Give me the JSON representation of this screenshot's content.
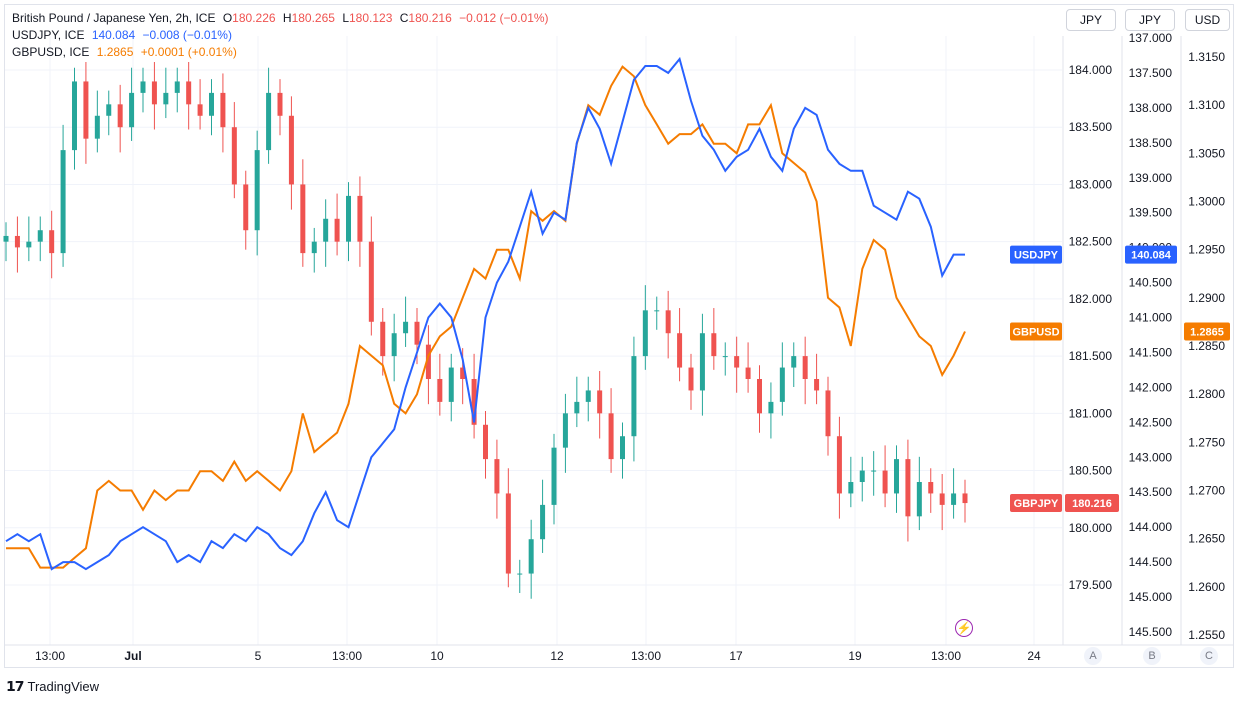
{
  "legend": {
    "main": {
      "name": "British Pound / Japanese Yen, 2h, ICE",
      "o_label": "O",
      "o": "180.226",
      "h_label": "H",
      "h": "180.265",
      "l_label": "L",
      "l": "180.123",
      "c_label": "C",
      "c": "180.216",
      "change": "−0.012 (−0.01%)"
    },
    "usdjpy": {
      "name": "USDJPY, ICE",
      "value": "140.084",
      "change": "−0.008 (−0.01%)"
    },
    "gbpusd": {
      "name": "GBPUSD, ICE",
      "value": "1.2865",
      "change": "+0.0001 (+0.01%)"
    }
  },
  "header_buttons": [
    "JPY",
    "JPY",
    "USD"
  ],
  "scale_buttons": [
    "A",
    "B",
    "C"
  ],
  "brand": "TradingView",
  "colors": {
    "usdjpy": "#2962ff",
    "gbpusd": "#f57c00",
    "up": "#26a69a",
    "down": "#ef5350",
    "grid": "#f0f3fa",
    "text": "#131722"
  },
  "chart_data": {
    "type": "line",
    "title": "British Pound / Japanese Yen, 2h, ICE",
    "x_ticks": [
      "13:00",
      "Jul",
      "5",
      "13:00",
      "10",
      "12",
      "13:00",
      "17",
      "19",
      "13:00",
      "24"
    ],
    "axes": {
      "gbpjpy": {
        "ticks": [
          "184.000",
          "183.500",
          "183.000",
          "182.500",
          "182.000",
          "181.500",
          "181.000",
          "180.500",
          "180.000",
          "179.500"
        ],
        "range": [
          179.5,
          184.0
        ]
      },
      "usdjpy": {
        "ticks": [
          "137.000",
          "137.500",
          "138.000",
          "138.500",
          "139.000",
          "139.500",
          "140.000",
          "140.500",
          "141.000",
          "141.500",
          "142.000",
          "142.500",
          "143.000",
          "143.500",
          "144.000",
          "144.500",
          "145.000",
          "145.500"
        ],
        "range": [
          137.0,
          145.5
        ],
        "inverted": true
      },
      "gbpusd": {
        "ticks": [
          "1.3150",
          "1.3100",
          "1.3050",
          "1.3000",
          "1.2950",
          "1.2900",
          "1.2850",
          "1.2800",
          "1.2750",
          "1.2700",
          "1.2650",
          "1.2600",
          "1.2550"
        ],
        "range": [
          1.255,
          1.315
        ]
      }
    },
    "series": [
      {
        "name": "USDJPY",
        "color": "#2962ff",
        "last_label": "140.084",
        "label_tag": "USDJPY",
        "values": [
          144.2,
          144.1,
          144.2,
          144.1,
          144.6,
          144.5,
          144.5,
          144.6,
          144.5,
          144.4,
          144.2,
          144.1,
          144.0,
          144.1,
          144.2,
          144.5,
          144.4,
          144.5,
          144.2,
          144.3,
          144.1,
          144.2,
          144.0,
          144.1,
          144.3,
          144.4,
          144.2,
          143.8,
          143.5,
          143.9,
          144.0,
          143.5,
          143.0,
          142.8,
          142.6,
          142.0,
          141.5,
          141.0,
          140.8,
          141.0,
          141.6,
          142.5,
          141.0,
          140.5,
          140.2,
          139.7,
          139.2,
          139.8,
          139.5,
          139.6,
          138.5,
          138.0,
          138.3,
          138.8,
          138.2,
          137.6,
          137.4,
          137.4,
          137.5,
          137.3,
          137.9,
          138.4,
          138.6,
          138.9,
          138.7,
          138.6,
          138.3,
          138.7,
          138.9,
          138.3,
          138.0,
          138.1,
          138.6,
          138.8,
          138.9,
          138.9,
          139.4,
          139.5,
          139.6,
          139.2,
          139.3,
          139.7,
          140.4,
          140.1,
          140.1
        ]
      },
      {
        "name": "GBPUSD",
        "color": "#f57c00",
        "last_label": "1.2865",
        "label_tag": "GBPUSD",
        "values": [
          1.264,
          1.264,
          1.264,
          1.262,
          1.262,
          1.262,
          1.263,
          1.264,
          1.27,
          1.271,
          1.27,
          1.27,
          1.268,
          1.27,
          1.269,
          1.27,
          1.27,
          1.272,
          1.272,
          1.271,
          1.273,
          1.271,
          1.272,
          1.271,
          1.27,
          1.272,
          1.278,
          1.274,
          1.275,
          1.276,
          1.279,
          1.285,
          1.284,
          1.283,
          1.279,
          1.278,
          1.28,
          1.284,
          1.286,
          1.287,
          1.29,
          1.293,
          1.292,
          1.295,
          1.295,
          1.292,
          1.299,
          1.298,
          1.299,
          1.298,
          1.306,
          1.31,
          1.309,
          1.312,
          1.314,
          1.313,
          1.31,
          1.308,
          1.306,
          1.307,
          1.307,
          1.308,
          1.306,
          1.306,
          1.305,
          1.308,
          1.308,
          1.31,
          1.305,
          1.304,
          1.303,
          1.3,
          1.29,
          1.289,
          1.285,
          1.293,
          1.296,
          1.295,
          1.29,
          1.288,
          1.286,
          1.285,
          1.282,
          1.284,
          1.2865
        ]
      },
      {
        "name": "GBPJPY",
        "color": "#ef5350",
        "last_label": "180.216",
        "label_tag": "GBPJPY",
        "type": "candlestick",
        "close": [
          182.55,
          182.45,
          182.5,
          182.6,
          182.4,
          183.3,
          183.9,
          183.4,
          183.6,
          183.7,
          183.5,
          183.8,
          183.9,
          183.7,
          183.8,
          183.9,
          183.7,
          183.6,
          183.8,
          183.5,
          183.0,
          182.6,
          183.3,
          183.8,
          183.6,
          183.0,
          182.4,
          182.5,
          182.7,
          182.5,
          182.9,
          182.5,
          181.8,
          181.5,
          181.7,
          181.8,
          181.6,
          181.3,
          181.1,
          181.4,
          181.3,
          180.9,
          180.6,
          180.3,
          179.6,
          179.6,
          179.9,
          180.2,
          180.7,
          181.0,
          181.1,
          181.2,
          181.0,
          180.6,
          180.8,
          181.5,
          181.9,
          181.9,
          181.7,
          181.4,
          181.2,
          181.7,
          181.5,
          181.5,
          181.4,
          181.3,
          181.0,
          181.1,
          181.4,
          181.5,
          181.3,
          181.2,
          180.8,
          180.3,
          180.4,
          180.5,
          180.5,
          180.3,
          180.6,
          180.1,
          180.4,
          180.3,
          180.2,
          180.3,
          180.216
        ]
      }
    ]
  }
}
